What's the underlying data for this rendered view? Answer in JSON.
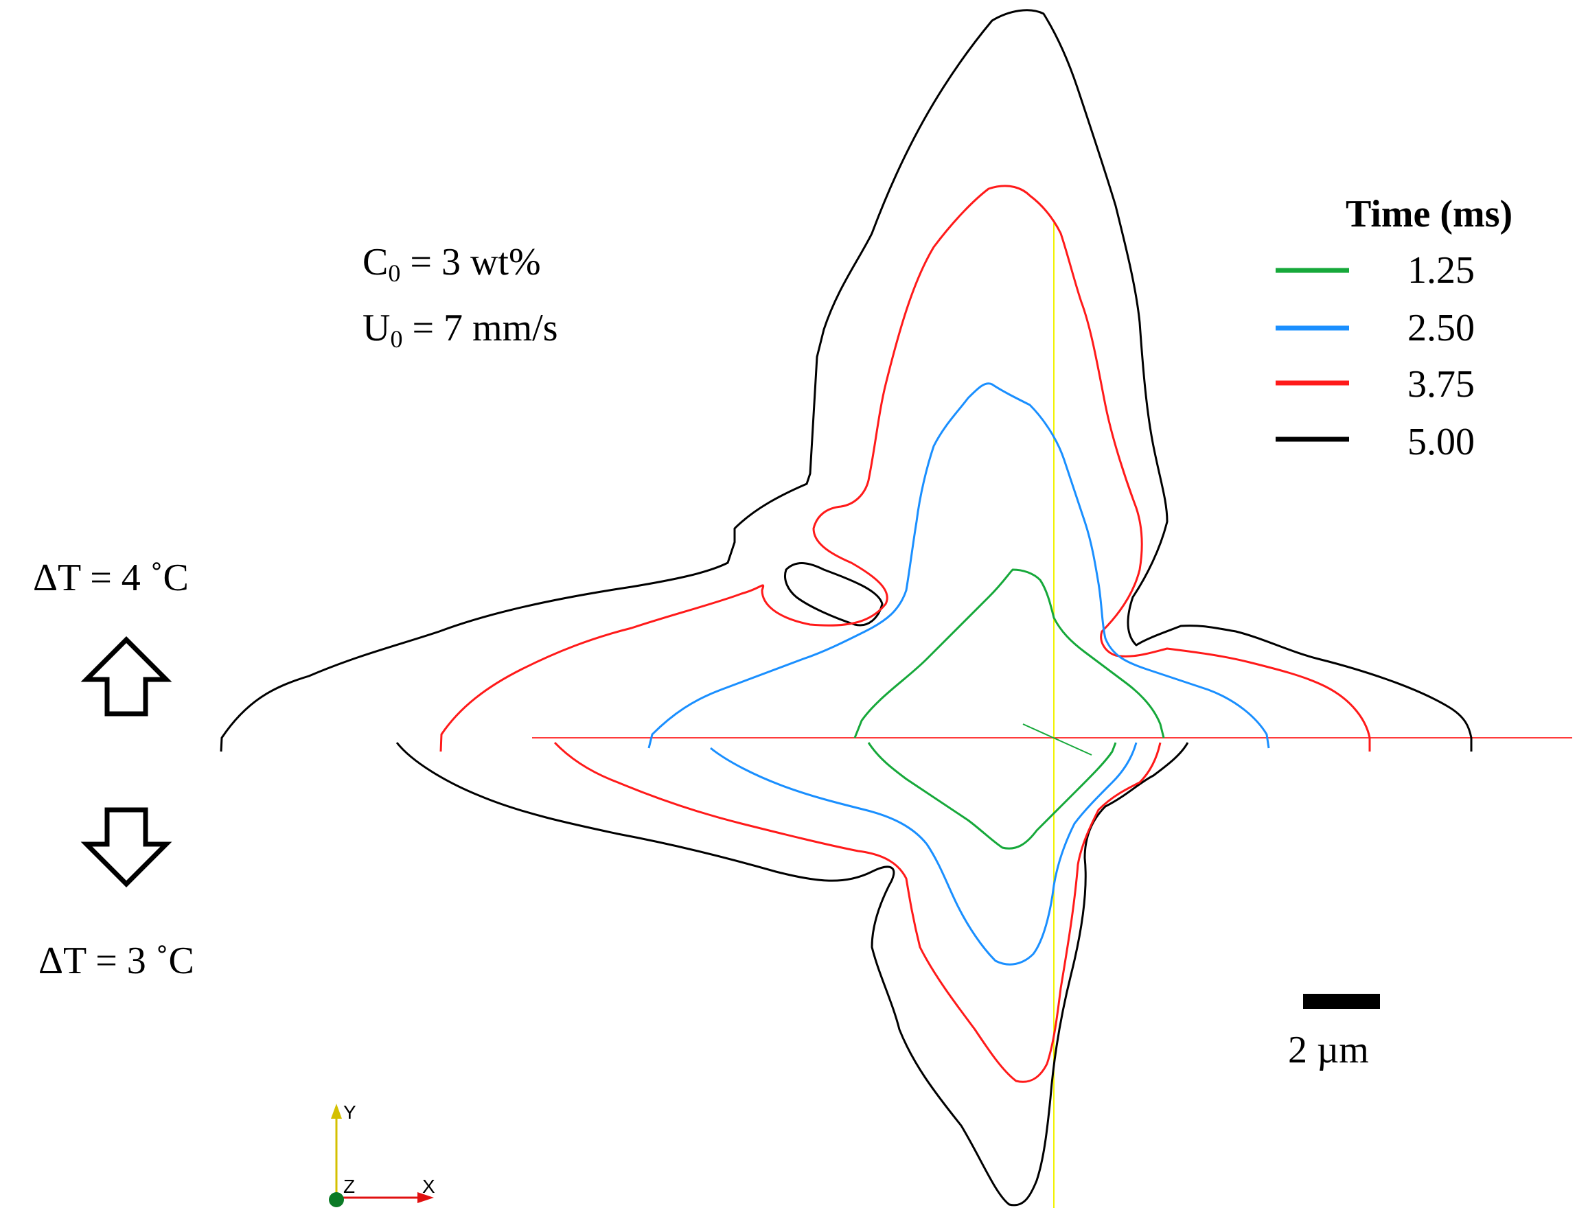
{
  "params": {
    "c0_label": "C",
    "c0_sub": "0",
    "c0_value": " = 3 wt%",
    "u0_label": "U",
    "u0_sub": "0",
    "u0_value": " = 7 mm/s"
  },
  "gradient": {
    "top_label": "ΔT = 4 ˚C",
    "bottom_label": "ΔT = 3 ˚C"
  },
  "legend": {
    "title": "Time (ms)",
    "items": [
      {
        "label": "1.25",
        "color": "#16a83a"
      },
      {
        "label": "2.50",
        "color": "#1a8fff"
      },
      {
        "label": "3.75",
        "color": "#ff1a1a"
      },
      {
        "label": "5.00",
        "color": "#000000"
      }
    ]
  },
  "scale_bar": {
    "label": "2 µm"
  },
  "axes_triad": {
    "y": "Y",
    "z": "Z",
    "x": "X"
  },
  "colors": {
    "centerline_horizontal": "#ff3b3b",
    "centerline_vertical": "#f2f200",
    "triad_y": "#d4c000",
    "triad_x": "#e01010",
    "triad_z": "#0b7a26"
  }
}
